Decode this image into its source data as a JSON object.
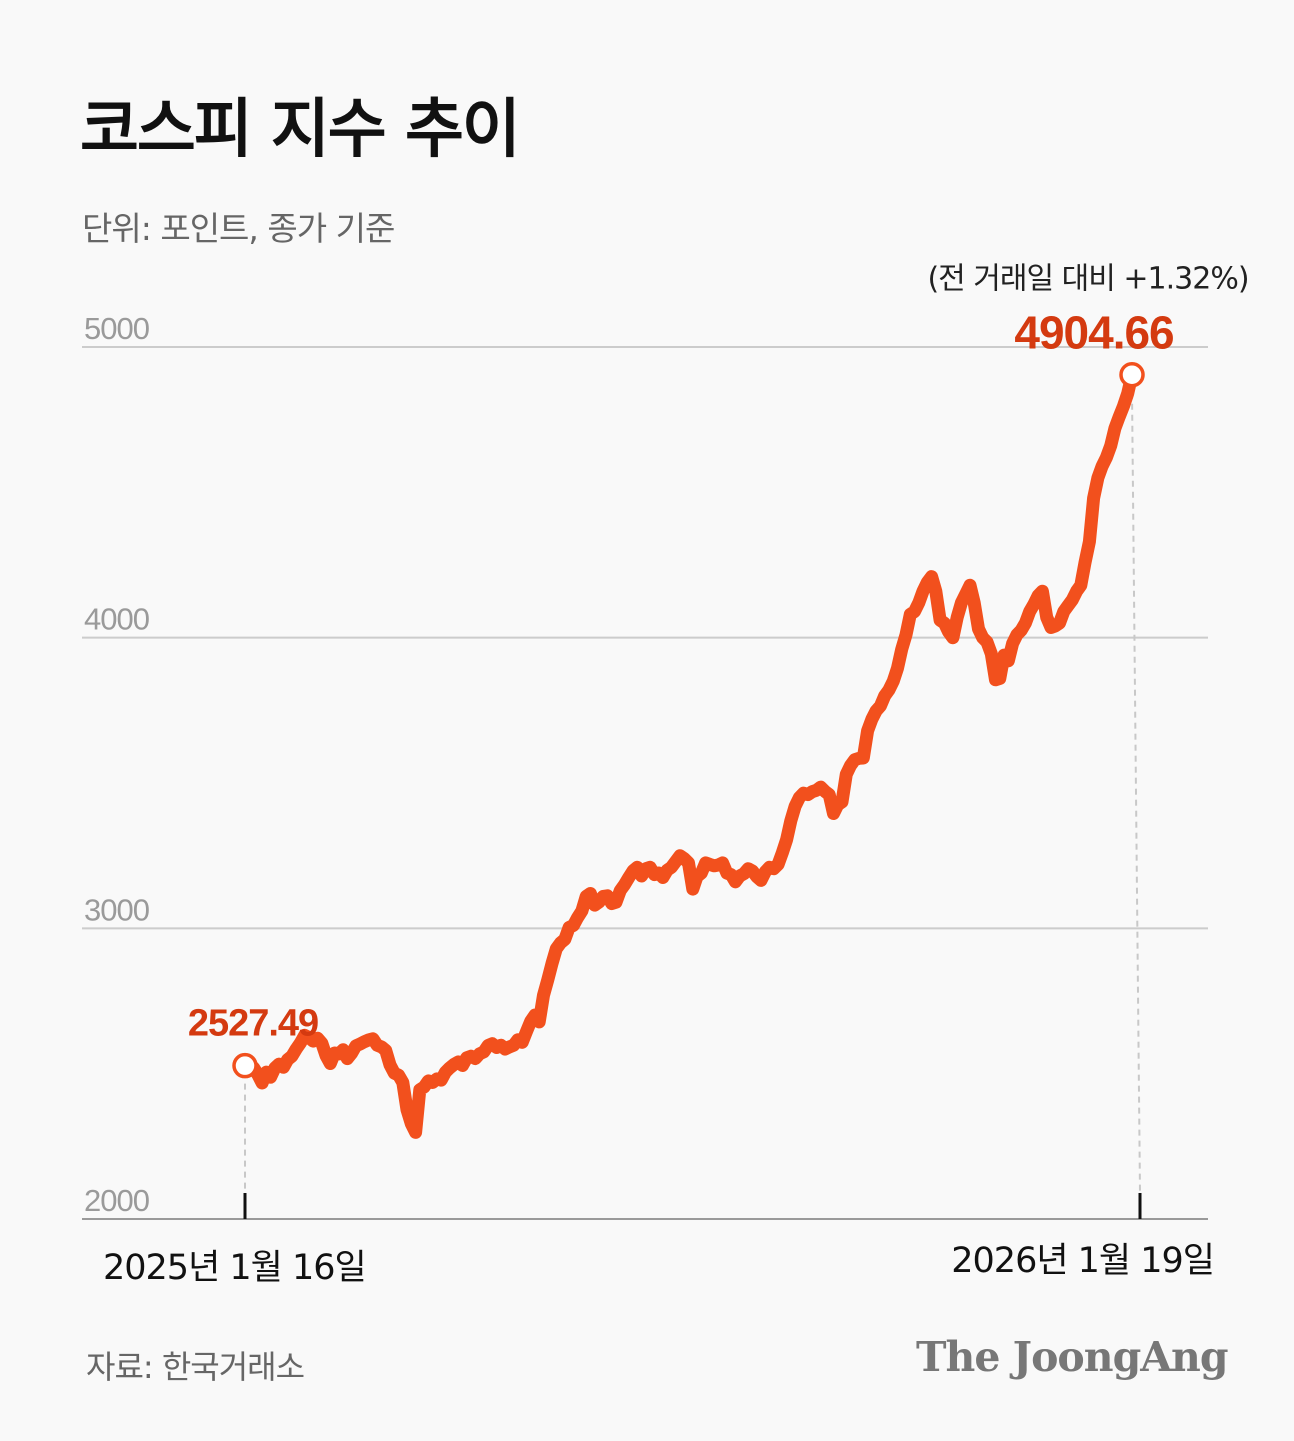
{
  "header": {
    "title": "코스피 지수 추이",
    "unit_note": "단위: 포인트, 종가 기준"
  },
  "footer": {
    "source": "자료: 한국거래소",
    "brand": "The JoongAng"
  },
  "chart_data": {
    "type": "line",
    "title": "코스피 지수 추이",
    "ylabel": "포인트",
    "ylim": [
      2000,
      5000
    ],
    "yticks": [
      "5000",
      "4000",
      "3000",
      "2000"
    ],
    "x_start_label": "2025년 1월 16일",
    "x_end_label": "2026년 1월 19일",
    "start_value_label": "2527.49",
    "end_value_label": "4904.66",
    "end_change_label": "(전 거래일 대비 +1.32%)",
    "colors": {
      "line": "#f2501d",
      "value_label": "#d43a10",
      "grid": "#cccccc",
      "tick": "#9a9a9a"
    },
    "series": [
      {
        "name": "KOSPI",
        "values": [
          2527.49,
          2516,
          2521,
          2497,
          2468,
          2505,
          2488,
          2520,
          2533,
          2522,
          2548,
          2560,
          2585,
          2606,
          2632,
          2624,
          2612,
          2622,
          2605,
          2562,
          2535,
          2571,
          2568,
          2582,
          2552,
          2570,
          2596,
          2602,
          2610,
          2616,
          2620,
          2598,
          2592,
          2580,
          2530,
          2502,
          2495,
          2470,
          2376,
          2328,
          2298,
          2445,
          2454,
          2475,
          2470,
          2482,
          2478,
          2505,
          2520,
          2532,
          2540,
          2528,
          2555,
          2560,
          2552,
          2568,
          2575,
          2597,
          2603,
          2590,
          2598,
          2585,
          2592,
          2598,
          2617,
          2608,
          2645,
          2680,
          2702,
          2678,
          2770,
          2823,
          2879,
          2930,
          2950,
          2962,
          3003,
          3010,
          3037,
          3060,
          3110,
          3120,
          3080,
          3090,
          3110,
          3112,
          3085,
          3090,
          3130,
          3150,
          3175,
          3198,
          3210,
          3180,
          3205,
          3210,
          3185,
          3190,
          3175,
          3200,
          3210,
          3230,
          3250,
          3240,
          3225,
          3135,
          3178,
          3190,
          3225,
          3220,
          3215,
          3218,
          3225,
          3190,
          3185,
          3160,
          3180,
          3188,
          3205,
          3197,
          3178,
          3165,
          3195,
          3210,
          3205,
          3220,
          3260,
          3305,
          3370,
          3420,
          3450,
          3465,
          3460,
          3470,
          3475,
          3486,
          3471,
          3460,
          3395,
          3425,
          3435,
          3530,
          3560,
          3580,
          3585,
          3586,
          3680,
          3720,
          3748,
          3765,
          3800,
          3820,
          3850,
          3895,
          3960,
          4010,
          4080,
          4090,
          4120,
          4160,
          4190,
          4210,
          4160,
          4060,
          4050,
          4020,
          4000,
          4070,
          4120,
          4150,
          4180,
          4120,
          4030,
          4000,
          3985,
          3945,
          3855,
          3860,
          3940,
          3920,
          3980,
          4010,
          4025,
          4050,
          4090,
          4115,
          4145,
          4160,
          4070,
          4035,
          4040,
          4050,
          4090,
          4110,
          4130,
          4160,
          4180,
          4260,
          4330,
          4480,
          4550,
          4590,
          4620,
          4660,
          4720,
          4760,
          4797,
          4840,
          4904.66
        ]
      }
    ]
  }
}
